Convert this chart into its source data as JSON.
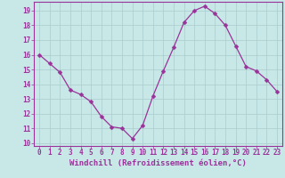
{
  "x": [
    0,
    1,
    2,
    3,
    4,
    5,
    6,
    7,
    8,
    9,
    10,
    11,
    12,
    13,
    14,
    15,
    16,
    17,
    18,
    19,
    20,
    21,
    22,
    23
  ],
  "y": [
    16.0,
    15.4,
    14.8,
    13.6,
    13.3,
    12.8,
    11.8,
    11.1,
    11.0,
    10.3,
    11.2,
    13.2,
    14.9,
    16.5,
    18.2,
    19.0,
    19.3,
    18.8,
    18.0,
    16.6,
    15.2,
    14.9,
    14.3,
    13.5
  ],
  "line_color": "#993399",
  "marker": "D",
  "marker_size": 2.5,
  "bg_color": "#c8e8e8",
  "grid_color": "#aacccc",
  "xlabel": "Windchill (Refroidissement éolien,°C)",
  "xlabel_color": "#993399",
  "tick_color": "#993399",
  "axis_color": "#993399",
  "ylim": [
    9.8,
    19.6
  ],
  "xlim": [
    -0.5,
    23.5
  ],
  "yticks": [
    10,
    11,
    12,
    13,
    14,
    15,
    16,
    17,
    18,
    19
  ],
  "xticks": [
    0,
    1,
    2,
    3,
    4,
    5,
    6,
    7,
    8,
    9,
    10,
    11,
    12,
    13,
    14,
    15,
    16,
    17,
    18,
    19,
    20,
    21,
    22,
    23
  ],
  "tick_fontsize": 5.5,
  "label_fontsize": 6.5
}
